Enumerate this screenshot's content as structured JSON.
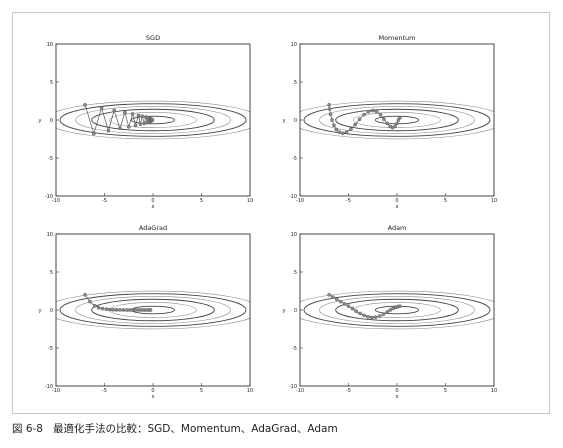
{
  "caption": {
    "figure_number": "図 6-8",
    "text": "最適化手法の比較：SGD、Momentum、AdaGrad、Adam"
  },
  "chart_data": [
    {
      "type": "line",
      "title": "SGD",
      "xlabel": "x",
      "ylabel": "y",
      "xlim": [
        -10,
        10
      ],
      "ylim": [
        -10,
        10
      ],
      "xticks": [
        "-10",
        "-5",
        "0",
        "5",
        "10"
      ],
      "yticks": [
        "10",
        "5",
        "0",
        "-5",
        "-10"
      ],
      "contours": true,
      "series": [
        {
          "x": [
            -7.0,
            -6.1,
            -5.3,
            -4.6,
            -4.0,
            -3.4,
            -2.9,
            -2.5,
            -2.1,
            -1.8,
            -1.5,
            -1.3,
            -1.1,
            -0.9,
            -0.75,
            -0.6,
            -0.5,
            -0.4,
            -0.32,
            -0.26,
            -0.2,
            -0.16,
            -0.12,
            -0.08,
            -0.05
          ],
          "y": [
            2.0,
            -1.8,
            1.6,
            -1.4,
            1.25,
            -1.1,
            1.0,
            -0.9,
            0.8,
            -0.7,
            0.6,
            -0.55,
            0.5,
            -0.45,
            0.4,
            -0.35,
            0.3,
            -0.25,
            0.2,
            -0.16,
            0.12,
            -0.1,
            0.08,
            -0.05,
            0.03
          ]
        }
      ]
    },
    {
      "type": "line",
      "title": "Momentum",
      "xlabel": "x",
      "ylabel": "y",
      "xlim": [
        -10,
        10
      ],
      "ylim": [
        -10,
        10
      ],
      "xticks": [
        "-10",
        "-5",
        "0",
        "5",
        "10"
      ],
      "yticks": [
        "10",
        "5",
        "0",
        "-5",
        "-10"
      ],
      "contours": true,
      "series": [
        {
          "x": [
            -7.0,
            -6.95,
            -6.85,
            -6.7,
            -6.5,
            -6.25,
            -5.95,
            -5.6,
            -5.2,
            -4.75,
            -4.3,
            -3.85,
            -3.4,
            -2.95,
            -2.5,
            -2.1,
            -1.7,
            -1.35,
            -1.0,
            -0.7,
            -0.45,
            -0.2,
            0.0,
            0.15,
            0.3
          ],
          "y": [
            2.0,
            1.45,
            0.75,
            0.0,
            -0.7,
            -1.25,
            -1.6,
            -1.75,
            -1.6,
            -1.2,
            -0.6,
            0.1,
            0.7,
            1.1,
            1.25,
            1.1,
            0.7,
            0.1,
            -0.45,
            -0.85,
            -1.0,
            -0.85,
            -0.45,
            0.0,
            0.3
          ]
        }
      ]
    },
    {
      "type": "line",
      "title": "AdaGrad",
      "xlabel": "x",
      "ylabel": "y",
      "xlim": [
        -10,
        10
      ],
      "ylim": [
        -10,
        10
      ],
      "xticks": [
        "-10",
        "-5",
        "0",
        "5",
        "10"
      ],
      "yticks": [
        "10",
        "5",
        "0",
        "-5",
        "-10"
      ],
      "contours": true,
      "series": [
        {
          "x": [
            -7.0,
            -6.5,
            -6.0,
            -5.6,
            -5.2,
            -4.8,
            -4.45,
            -4.1,
            -3.75,
            -3.4,
            -3.05,
            -2.7,
            -2.4,
            -2.1,
            -1.8,
            -1.5,
            -1.2,
            -0.95,
            -0.7,
            -0.45,
            -0.25
          ],
          "y": [
            2.0,
            1.1,
            0.55,
            0.3,
            0.18,
            0.1,
            0.06,
            0.03,
            0.02,
            0.01,
            0.0,
            0.0,
            0.0,
            0.0,
            0.0,
            0.0,
            0.0,
            0.0,
            0.0,
            0.0,
            0.0
          ]
        }
      ]
    },
    {
      "type": "line",
      "title": "Adam",
      "xlabel": "x",
      "ylabel": "y",
      "xlim": [
        -10,
        10
      ],
      "ylim": [
        -10,
        10
      ],
      "xticks": [
        "-10",
        "-5",
        "0",
        "5",
        "10"
      ],
      "yticks": [
        "10",
        "5",
        "0",
        "-5",
        "-10"
      ],
      "contours": true,
      "series": [
        {
          "x": [
            -7.0,
            -6.6,
            -6.2,
            -5.8,
            -5.4,
            -5.0,
            -4.6,
            -4.2,
            -3.8,
            -3.4,
            -3.0,
            -2.6,
            -2.2,
            -1.8,
            -1.4,
            -1.0,
            -0.7,
            -0.4,
            -0.1,
            0.1,
            0.3
          ],
          "y": [
            2.0,
            1.7,
            1.4,
            1.1,
            0.8,
            0.5,
            0.2,
            -0.15,
            -0.45,
            -0.7,
            -0.9,
            -1.0,
            -0.95,
            -0.8,
            -0.55,
            -0.25,
            0.0,
            0.2,
            0.35,
            0.45,
            0.5
          ]
        }
      ]
    }
  ]
}
